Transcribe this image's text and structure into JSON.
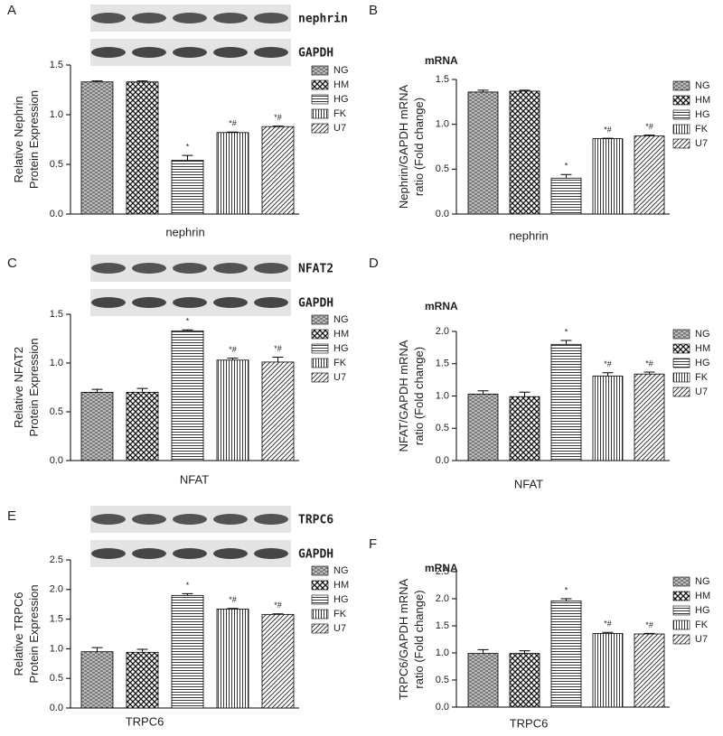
{
  "chart_data": [
    {
      "type": "bar",
      "panel": "A",
      "blot_labels": [
        "nephrin",
        "GAPDH"
      ],
      "ylabel": [
        "Relative Nephrin",
        "Protein Expression"
      ],
      "xlabel": "nephrin",
      "categories": [
        "NG",
        "HM",
        "HG",
        "FK",
        "U7"
      ],
      "values": [
        1.33,
        1.33,
        0.54,
        0.82,
        0.88
      ],
      "errors": [
        0.01,
        0.01,
        0.05,
        0.005,
        0.005
      ],
      "annotations": [
        null,
        null,
        "*",
        "*#",
        "*#"
      ],
      "ylim": [
        0,
        1.5
      ],
      "yticks": [
        {
          "value": 0,
          "label": "0.0"
        },
        {
          "value": 0.5,
          "label": "0.5"
        },
        {
          "value": 1,
          "label": "1.0"
        },
        {
          "value": 1.5,
          "label": "1.5"
        }
      ]
    },
    {
      "type": "bar",
      "panel": "B",
      "title": "mRNA",
      "ylabel": [
        "Nephrin/GAPDH mRNA",
        "ratio (Fold change)"
      ],
      "xlabel": "nephrin",
      "categories": [
        "NG",
        "HM",
        "HG",
        "FK",
        "U7"
      ],
      "values": [
        1.36,
        1.37,
        0.4,
        0.84,
        0.87
      ],
      "errors": [
        0.02,
        0.01,
        0.04,
        0.005,
        0.01
      ],
      "annotations": [
        null,
        null,
        "*",
        "*#",
        "*#"
      ],
      "ylim": [
        0,
        1.5
      ],
      "yticks": [
        {
          "value": 0,
          "label": "0.0"
        },
        {
          "value": 0.5,
          "label": "0.5"
        },
        {
          "value": 1,
          "label": "1.0"
        },
        {
          "value": 1.5,
          "label": "1.5"
        }
      ]
    },
    {
      "type": "bar",
      "panel": "C",
      "blot_labels": [
        "NFAT2",
        "GAPDH"
      ],
      "ylabel": [
        "Relative NFAT2",
        "Protein Expression"
      ],
      "xlabel": "NFAT",
      "categories": [
        "NG",
        "HM",
        "HG",
        "FK",
        "U7"
      ],
      "values": [
        0.7,
        0.7,
        1.33,
        1.03,
        1.01
      ],
      "errors": [
        0.03,
        0.04,
        0.01,
        0.02,
        0.05
      ],
      "annotations": [
        null,
        null,
        "*",
        "*#",
        "*#"
      ],
      "ylim": [
        0,
        1.5
      ],
      "yticks": [
        {
          "value": 0,
          "label": "0.0"
        },
        {
          "value": 0.5,
          "label": "0.5"
        },
        {
          "value": 1,
          "label": "1.0"
        },
        {
          "value": 1.5,
          "label": "1.5"
        }
      ]
    },
    {
      "type": "bar",
      "panel": "D",
      "title": "mRNA",
      "ylabel": [
        "NFAT/GAPDH mRNA",
        "ratio (Fold change)"
      ],
      "xlabel": "NFAT",
      "categories": [
        "NG",
        "HM",
        "HG",
        "FK",
        "U7"
      ],
      "values": [
        1.03,
        0.99,
        1.8,
        1.31,
        1.34
      ],
      "errors": [
        0.05,
        0.07,
        0.06,
        0.05,
        0.03
      ],
      "annotations": [
        null,
        null,
        "*",
        "*#",
        "*#"
      ],
      "ylim": [
        0,
        2
      ],
      "yticks": [
        {
          "value": 0,
          "label": "0.0"
        },
        {
          "value": 0.5,
          "label": "0.5"
        },
        {
          "value": 1,
          "label": "1.0"
        },
        {
          "value": 1.5,
          "label": "1.5"
        },
        {
          "value": 2,
          "label": "2.0"
        }
      ]
    },
    {
      "type": "bar",
      "panel": "E",
      "blot_labels": [
        "TRPC6",
        "GAPDH"
      ],
      "ylabel": [
        "Relative TRPC6",
        "Protein Expression"
      ],
      "xlabel": "TRPC6",
      "categories": [
        "NG",
        "HM",
        "HG",
        "FK",
        "U7"
      ],
      "values": [
        0.95,
        0.94,
        1.9,
        1.67,
        1.58
      ],
      "errors": [
        0.07,
        0.05,
        0.03,
        0.01,
        0.01
      ],
      "annotations": [
        null,
        null,
        "*",
        "*#",
        "*#"
      ],
      "ylim": [
        0,
        2.5
      ],
      "yticks": [
        {
          "value": 0,
          "label": "0.0"
        },
        {
          "value": 0.5,
          "label": "0.5"
        },
        {
          "value": 1,
          "label": "1.0"
        },
        {
          "value": 1.5,
          "label": "1.5"
        },
        {
          "value": 2,
          "label": "2.0"
        },
        {
          "value": 2.5,
          "label": "2.5"
        }
      ]
    },
    {
      "type": "bar",
      "panel": "F",
      "title": "mRNA",
      "ylabel": [
        "TRPC6/GAPDH mRNA",
        "ratio (Fold change)"
      ],
      "xlabel": "TRPC6",
      "categories": [
        "NG",
        "HM",
        "HG",
        "FK",
        "U7"
      ],
      "values": [
        0.99,
        0.99,
        1.96,
        1.36,
        1.35
      ],
      "errors": [
        0.07,
        0.05,
        0.04,
        0.02,
        0.01
      ],
      "annotations": [
        null,
        null,
        "*",
        "*#",
        "*#"
      ],
      "ylim": [
        0,
        2.5
      ],
      "yticks": [
        {
          "value": 0,
          "label": "0.0"
        },
        {
          "value": 0.5,
          "label": "0.5"
        },
        {
          "value": 1,
          "label": "1.0"
        },
        {
          "value": 1.5,
          "label": "1.5"
        },
        {
          "value": 2,
          "label": "2.0"
        },
        {
          "value": 2.5,
          "label": "2.5"
        }
      ]
    }
  ]
}
